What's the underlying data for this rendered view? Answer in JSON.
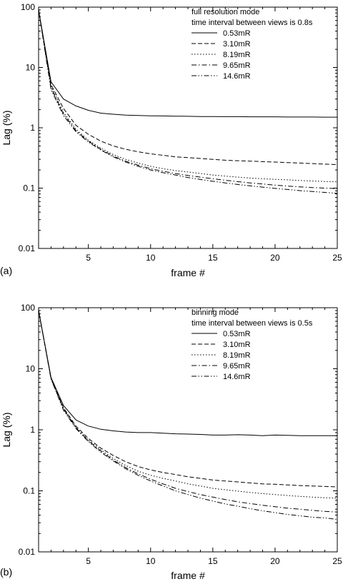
{
  "chart_data": [
    {
      "type": "line",
      "panel_label": "(a)",
      "xlabel": "frame #",
      "ylabel": "Lag (%)",
      "xlim": [
        1,
        25
      ],
      "ylim": [
        0.01,
        100
      ],
      "yscale": "log",
      "xticks": [
        5,
        10,
        15,
        20,
        25
      ],
      "yticks": [
        0.01,
        0.1,
        1,
        10,
        100
      ],
      "ytick_labels": [
        "0.01",
        "0.1",
        "1",
        "10",
        "100"
      ],
      "legend_title": [
        "full resolution mode",
        "time interval between views is 0.8s"
      ],
      "legend_position": "top-right",
      "x": [
        1,
        2,
        3,
        4,
        5,
        6,
        7,
        8,
        9,
        10,
        11,
        12,
        13,
        14,
        15,
        16,
        17,
        18,
        19,
        20,
        21,
        22,
        23,
        24,
        25
      ],
      "series": [
        {
          "name": "0.53mR",
          "dash": "solid",
          "values": [
            90,
            5.8,
            3.0,
            2.3,
            1.95,
            1.75,
            1.68,
            1.62,
            1.6,
            1.58,
            1.57,
            1.56,
            1.55,
            1.54,
            1.54,
            1.53,
            1.53,
            1.52,
            1.52,
            1.52,
            1.51,
            1.51,
            1.51,
            1.5,
            1.5
          ]
        },
        {
          "name": "3.10mR",
          "dash": "dash",
          "values": [
            90,
            5.2,
            2.1,
            1.1,
            0.78,
            0.6,
            0.5,
            0.44,
            0.4,
            0.37,
            0.35,
            0.33,
            0.32,
            0.31,
            0.3,
            0.29,
            0.285,
            0.28,
            0.275,
            0.27,
            0.265,
            0.26,
            0.255,
            0.25,
            0.245
          ]
        },
        {
          "name": "8.19mR",
          "dash": "dot",
          "values": [
            90,
            4.9,
            1.8,
            0.95,
            0.62,
            0.46,
            0.36,
            0.3,
            0.26,
            0.23,
            0.21,
            0.195,
            0.185,
            0.175,
            0.165,
            0.158,
            0.152,
            0.147,
            0.143,
            0.14,
            0.137,
            0.134,
            0.131,
            0.129,
            0.127
          ]
        },
        {
          "name": "9.65mR",
          "dash": "dashdot",
          "values": [
            90,
            4.6,
            1.7,
            0.9,
            0.6,
            0.44,
            0.34,
            0.28,
            0.24,
            0.21,
            0.19,
            0.175,
            0.162,
            0.152,
            0.143,
            0.135,
            0.128,
            0.122,
            0.117,
            0.112,
            0.108,
            0.105,
            0.102,
            0.1,
            0.098
          ]
        },
        {
          "name": "14.6mR",
          "dash": "dashdotdot",
          "values": [
            90,
            4.3,
            1.6,
            0.86,
            0.58,
            0.43,
            0.33,
            0.27,
            0.23,
            0.2,
            0.18,
            0.165,
            0.15,
            0.139,
            0.13,
            0.122,
            0.115,
            0.109,
            0.104,
            0.099,
            0.095,
            0.091,
            0.088,
            0.085,
            0.082
          ]
        }
      ]
    },
    {
      "type": "line",
      "panel_label": "(b)",
      "xlabel": "frame #",
      "ylabel": "Lag (%)",
      "xlim": [
        1,
        25
      ],
      "ylim": [
        0.01,
        100
      ],
      "yscale": "log",
      "xticks": [
        5,
        10,
        15,
        20,
        25
      ],
      "yticks": [
        0.01,
        0.1,
        1,
        10,
        100
      ],
      "ytick_labels": [
        "0.01",
        "0.1",
        "1",
        "10",
        "100"
      ],
      "legend_title": [
        "binning mode",
        "time interval between views is 0.5s"
      ],
      "legend_position": "top-right",
      "x": [
        1,
        2,
        3,
        4,
        5,
        6,
        7,
        8,
        9,
        10,
        11,
        12,
        13,
        14,
        15,
        16,
        17,
        18,
        19,
        20,
        21,
        22,
        23,
        24,
        25
      ],
      "series": [
        {
          "name": "0.53mR",
          "dash": "solid",
          "values": [
            90,
            7.2,
            2.5,
            1.45,
            1.15,
            1.02,
            0.96,
            0.92,
            0.9,
            0.9,
            0.88,
            0.86,
            0.85,
            0.84,
            0.82,
            0.82,
            0.83,
            0.82,
            0.8,
            0.82,
            0.81,
            0.8,
            0.8,
            0.8,
            0.8
          ]
        },
        {
          "name": "3.10mR",
          "dash": "dash",
          "values": [
            90,
            7.0,
            2.3,
            1.15,
            0.72,
            0.5,
            0.38,
            0.3,
            0.25,
            0.22,
            0.2,
            0.185,
            0.17,
            0.16,
            0.15,
            0.145,
            0.14,
            0.135,
            0.13,
            0.128,
            0.125,
            0.122,
            0.12,
            0.118,
            0.116
          ]
        },
        {
          "name": "8.19mR",
          "dash": "dot",
          "values": [
            90,
            7.0,
            2.2,
            1.1,
            0.68,
            0.47,
            0.34,
            0.26,
            0.21,
            0.18,
            0.16,
            0.145,
            0.13,
            0.12,
            0.11,
            0.104,
            0.099,
            0.094,
            0.09,
            0.087,
            0.084,
            0.081,
            0.079,
            0.077,
            0.076
          ]
        },
        {
          "name": "9.65mR",
          "dash": "dashdot",
          "values": [
            90,
            6.9,
            2.2,
            1.08,
            0.66,
            0.45,
            0.32,
            0.24,
            0.19,
            0.155,
            0.13,
            0.11,
            0.097,
            0.087,
            0.079,
            0.072,
            0.066,
            0.062,
            0.058,
            0.055,
            0.052,
            0.05,
            0.048,
            0.046,
            0.045
          ]
        },
        {
          "name": "14.6mR",
          "dash": "dashdotdot",
          "values": [
            90,
            6.8,
            2.1,
            1.05,
            0.64,
            0.43,
            0.31,
            0.23,
            0.18,
            0.145,
            0.12,
            0.1,
            0.087,
            0.076,
            0.068,
            0.061,
            0.056,
            0.051,
            0.047,
            0.044,
            0.041,
            0.039,
            0.037,
            0.036,
            0.034
          ]
        }
      ]
    }
  ]
}
